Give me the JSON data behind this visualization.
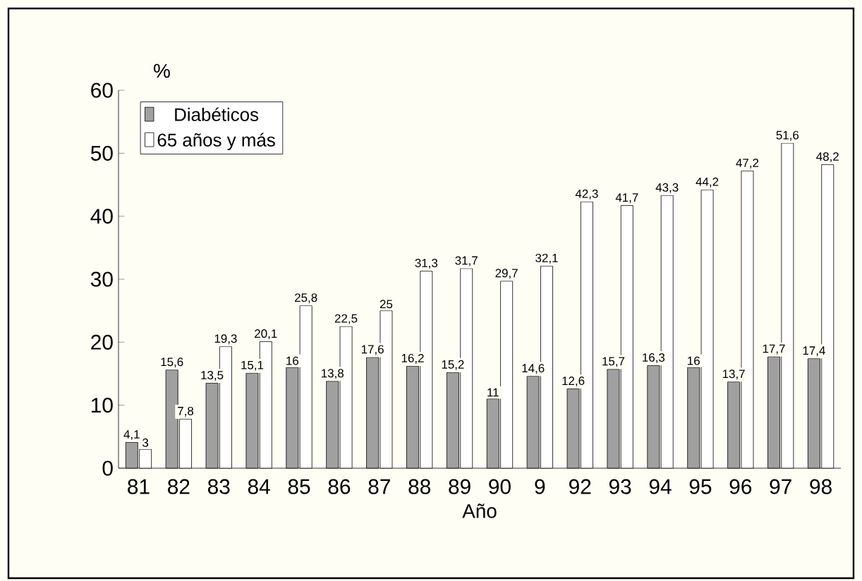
{
  "chart_data": {
    "type": "bar",
    "xlabel": "Año",
    "ylabel": "%",
    "categories": [
      "81",
      "82",
      "83",
      "84",
      "85",
      "86",
      "87",
      "88",
      "89",
      "90",
      "9",
      "92",
      "93",
      "94",
      "95",
      "96",
      "97",
      "98"
    ],
    "series": [
      {
        "name": "Diabéticos",
        "color": "#a0a0a0",
        "values": [
          4.1,
          15.6,
          13.5,
          15.1,
          16,
          13.8,
          17.6,
          16.2,
          15.2,
          11,
          14.6,
          12.6,
          15.7,
          16.3,
          16,
          13.7,
          17.7,
          17.4
        ],
        "value_labels": [
          "4,1",
          "15,6",
          "13,5",
          "15,1",
          "16",
          "13,8",
          "17,6",
          "16,2",
          "15,2",
          "11",
          "14,6",
          "12,6",
          "15,7",
          "16,3",
          "16",
          "13,7",
          "17,7",
          "17,4"
        ]
      },
      {
        "name": "65 años y más",
        "color": "#ffffff",
        "values": [
          3,
          7.8,
          19.3,
          20.1,
          25.8,
          22.5,
          25,
          31.3,
          31.7,
          29.7,
          32.1,
          42.3,
          41.7,
          43.3,
          44.2,
          47.2,
          51.6,
          48.2
        ],
        "value_labels": [
          "3",
          "7,8",
          "19,3",
          "20,1",
          "25,8",
          "22,5",
          "25",
          "31,3",
          "31,7",
          "29,7",
          "32,1",
          "42,3",
          "41,7",
          "43,3",
          "44,2",
          "47,2",
          "51,6",
          "48,2"
        ]
      }
    ],
    "ylim": [
      0,
      60
    ],
    "yticks": [
      0,
      10,
      20,
      30,
      40,
      50,
      60
    ],
    "legend": "top left",
    "grid": false
  }
}
